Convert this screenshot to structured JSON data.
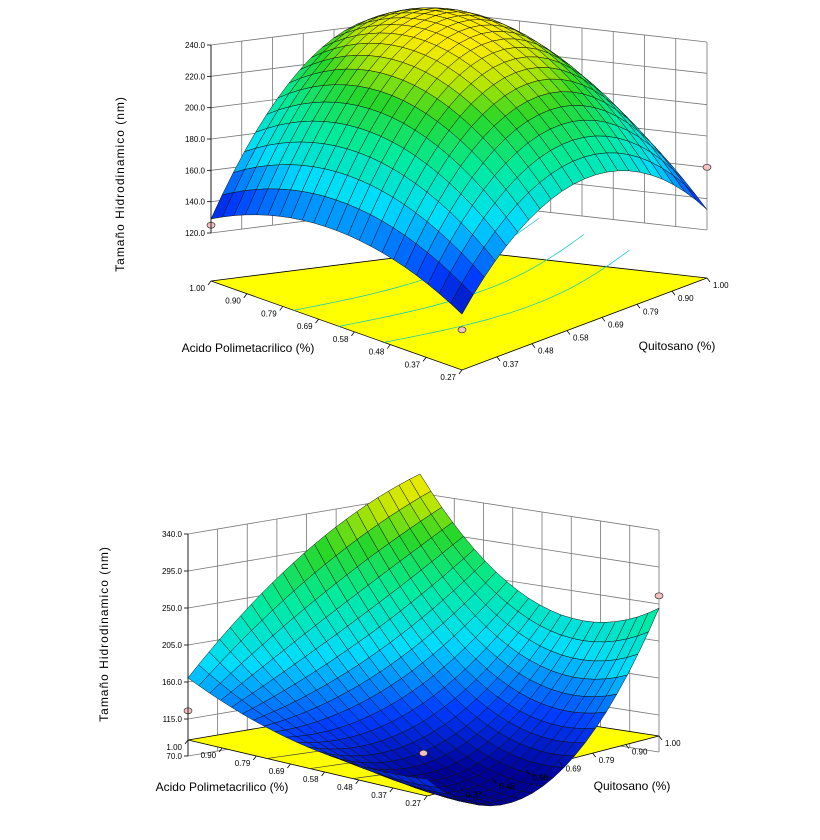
{
  "chart_data": [
    {
      "type": "surface3d",
      "zlabel": "Tamaño Hidrodinamico (nm)",
      "xlabel": "Acido Polimetacrilico (%)",
      "ylabel": "Quitosano (%)",
      "x_ticks": [
        "1.00",
        "0.90",
        "0.79",
        "0.69",
        "0.58",
        "0.48",
        "0.37",
        "0.27"
      ],
      "y_ticks": [
        "0.37",
        "0.48",
        "0.58",
        "0.69",
        "0.79",
        "0.90",
        "1.00"
      ],
      "z_ticks": [
        "120.0",
        "140.0",
        "160.0",
        "180.0",
        "200.0",
        "220.0",
        "240.0"
      ],
      "xlim": [
        0.27,
        1.0
      ],
      "ylim": [
        0.27,
        1.0
      ],
      "zlim": [
        120,
        240
      ],
      "grid": true,
      "surface_samples": {
        "x": [
          1.0,
          0.64,
          0.27
        ],
        "y": [
          0.27,
          0.64,
          1.0
        ],
        "z": [
          [
            129,
            215,
            186
          ],
          [
            150,
            240,
            186
          ],
          [
            125,
            182,
            133
          ]
        ]
      },
      "design_points": [
        {
          "x": 1.0,
          "y": 0.27,
          "z": 125
        },
        {
          "x": 0.27,
          "y": 1.0,
          "z": 160
        },
        {
          "x": 0.27,
          "y": 0.27,
          "z": 115
        }
      ]
    },
    {
      "type": "surface3d",
      "zlabel": "Tamaño Hidrodinamico (nm)",
      "xlabel": "Acido Polimetacrilico (%)",
      "ylabel": "Quitosano (%)",
      "x_ticks": [
        "1.00",
        "0.90",
        "0.79",
        "0.69",
        "0.58",
        "0.48",
        "0.37",
        "0.27"
      ],
      "y_ticks": [
        "0.37",
        "0.48",
        "0.58",
        "0.69",
        "0.79",
        "0.90",
        "1.00"
      ],
      "z_ticks": [
        "70.0",
        "115.0",
        "160.0",
        "205.0",
        "250.0",
        "295.0",
        "340.0"
      ],
      "xlim": [
        0.27,
        1.0
      ],
      "ylim": [
        0.27,
        1.0
      ],
      "zlim": [
        70,
        340
      ],
      "grid": true,
      "surface_samples": {
        "x": [
          1.0,
          0.64,
          0.27
        ],
        "y": [
          0.27,
          0.64,
          1.0
        ],
        "z": [
          [
            165,
            280,
            340
          ],
          [
            115,
            110,
            215
          ],
          [
            110,
            65,
            245
          ]
        ]
      },
      "design_points": [
        {
          "x": 1.0,
          "y": 0.27,
          "z": 125
        },
        {
          "x": 0.27,
          "y": 1.0,
          "z": 260
        },
        {
          "x": 0.64,
          "y": 0.64,
          "z": 70
        }
      ]
    }
  ]
}
